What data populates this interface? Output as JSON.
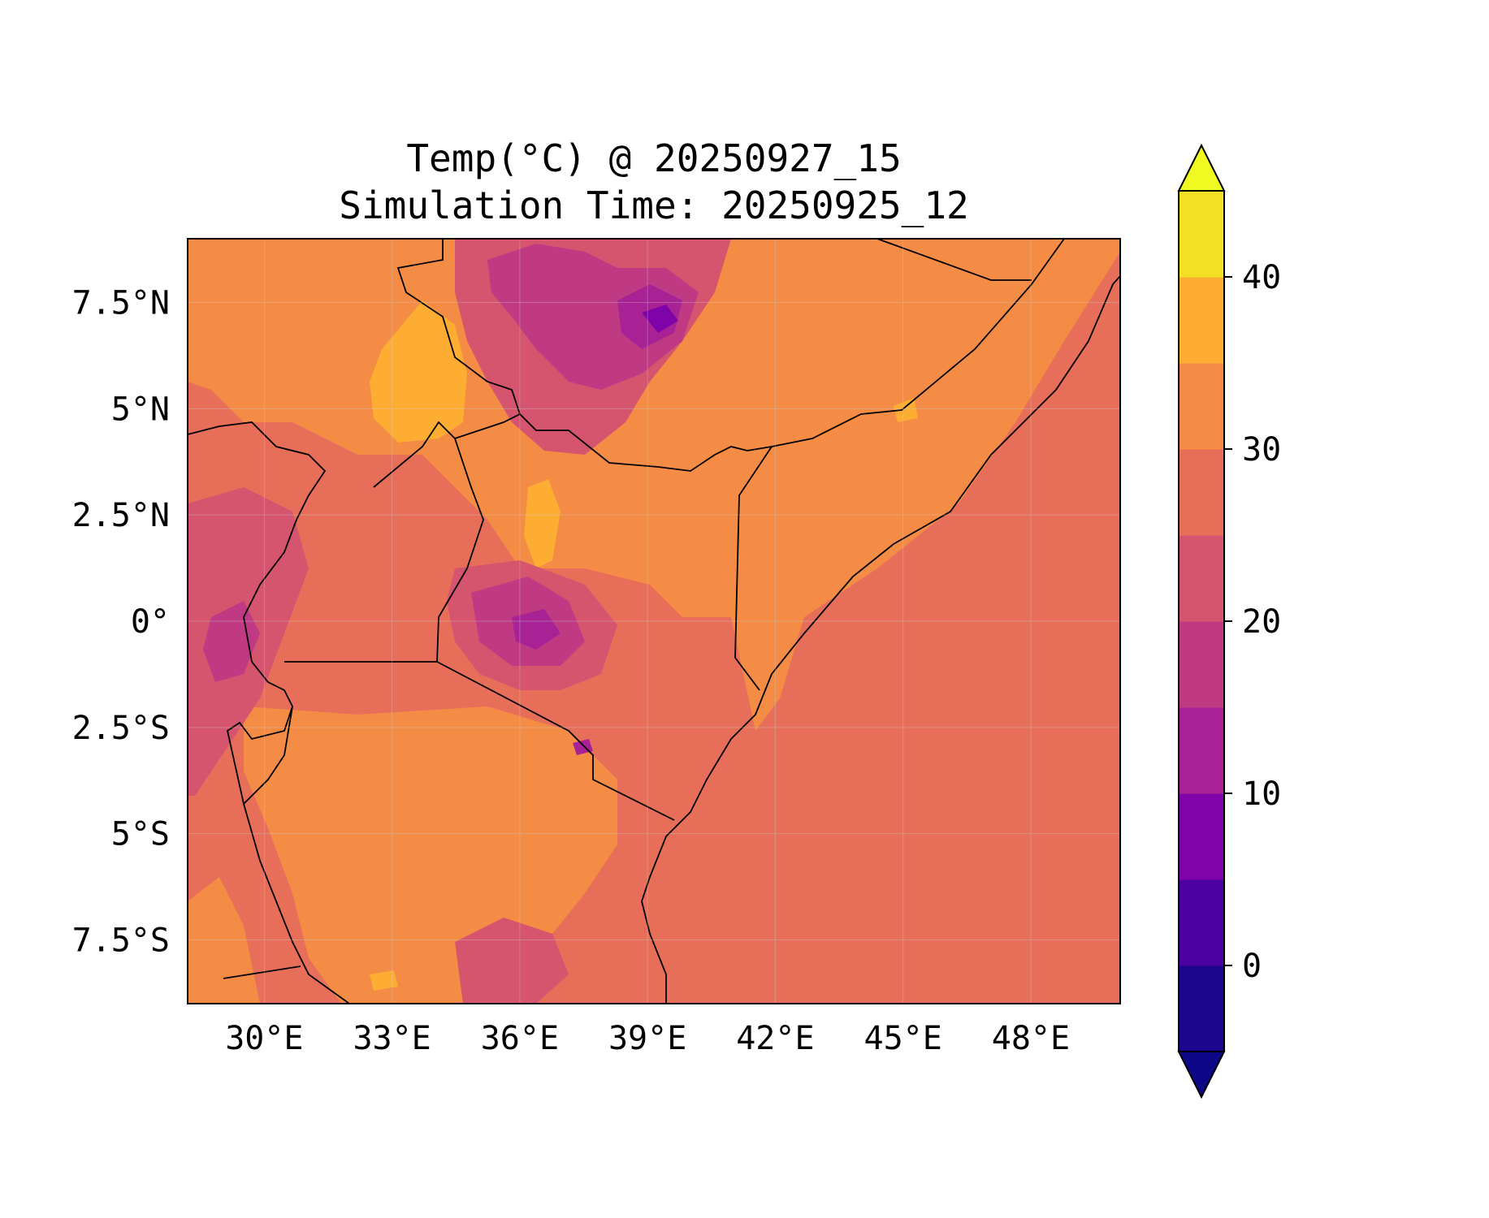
{
  "title": {
    "line1": "Temp(°C) @ 20250927_15",
    "line2": "Simulation Time: 20250925_12"
  },
  "map": {
    "region": "East Africa",
    "variable": "Temp(°C)",
    "lon_range": [
      28.2,
      50.1
    ],
    "lat_range": [
      -9.0,
      9.0
    ],
    "x_ticks": [
      {
        "value": 30,
        "label": "30°E"
      },
      {
        "value": 33,
        "label": "33°E"
      },
      {
        "value": 36,
        "label": "36°E"
      },
      {
        "value": 39,
        "label": "39°E"
      },
      {
        "value": 42,
        "label": "42°E"
      },
      {
        "value": 45,
        "label": "45°E"
      },
      {
        "value": 48,
        "label": "48°E"
      }
    ],
    "y_ticks": [
      {
        "value": 7.5,
        "label": "7.5°N"
      },
      {
        "value": 5,
        "label": "5°N"
      },
      {
        "value": 2.5,
        "label": "2.5°N"
      },
      {
        "value": 0,
        "label": "0°"
      },
      {
        "value": -2.5,
        "label": "2.5°S"
      },
      {
        "value": -5,
        "label": "5°S"
      },
      {
        "value": -7.5,
        "label": "7.5°S"
      }
    ],
    "gridlines": true
  },
  "colorbar": {
    "range": [
      -5,
      45
    ],
    "extend": "both",
    "levels": [
      {
        "from": -5,
        "to": 0,
        "color": "#1b068d"
      },
      {
        "from": 0,
        "to": 5,
        "color": "#4c02a1"
      },
      {
        "from": 5,
        "to": 10,
        "color": "#7e03a8"
      },
      {
        "from": 10,
        "to": 15,
        "color": "#a82296"
      },
      {
        "from": 15,
        "to": 20,
        "color": "#c03a83"
      },
      {
        "from": 20,
        "to": 25,
        "color": "#d5546e"
      },
      {
        "from": 25,
        "to": 30,
        "color": "#e76f5a"
      },
      {
        "from": 30,
        "to": 35,
        "color": "#f58c46"
      },
      {
        "from": 35,
        "to": 40,
        "color": "#fdad32"
      },
      {
        "from": 40,
        "to": 45,
        "color": "#f3e025"
      }
    ],
    "under_color": "#0d0887",
    "over_color": "#f0f921",
    "ticks": [
      {
        "value": 0,
        "label": "0"
      },
      {
        "value": 10,
        "label": "10"
      },
      {
        "value": 20,
        "label": "20"
      },
      {
        "value": 30,
        "label": "30"
      },
      {
        "value": 40,
        "label": "40"
      }
    ]
  }
}
